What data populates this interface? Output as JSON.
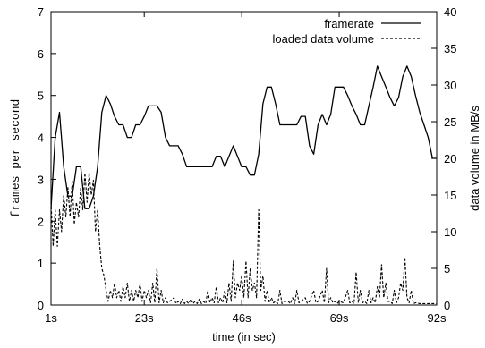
{
  "chart_data": {
    "type": "line",
    "title": "",
    "xlabel": "time (in sec)",
    "ylabel_left": "frames per second",
    "ylabel_right": "data volume in MB/s",
    "xlim": [
      1,
      92
    ],
    "ylim_left": [
      0,
      7
    ],
    "ylim_right": [
      0,
      40
    ],
    "x_ticks": [
      1,
      23,
      46,
      69,
      92
    ],
    "x_tick_labels": [
      "1s",
      "23s",
      "46s",
      "69s",
      "92s"
    ],
    "y_left_ticks": [
      0,
      1,
      2,
      3,
      4,
      5,
      6,
      7
    ],
    "y_right_ticks": [
      0,
      5,
      10,
      15,
      20,
      25,
      30,
      35,
      40
    ],
    "grid": false,
    "legend_position": "top-right",
    "series": [
      {
        "name": "framerate",
        "axis": "left",
        "style": "solid",
        "points": [
          [
            1,
            2.3
          ],
          [
            2,
            4.0
          ],
          [
            3,
            4.6
          ],
          [
            4,
            3.3
          ],
          [
            5,
            2.6
          ],
          [
            6,
            2.6
          ],
          [
            7,
            3.3
          ],
          [
            8,
            3.3
          ],
          [
            9,
            2.3
          ],
          [
            10,
            2.3
          ],
          [
            11,
            2.6
          ],
          [
            12,
            3.3
          ],
          [
            13,
            4.6
          ],
          [
            14,
            5.0
          ],
          [
            15,
            4.8
          ],
          [
            16,
            4.5
          ],
          [
            17,
            4.3
          ],
          [
            18,
            4.3
          ],
          [
            19,
            4.0
          ],
          [
            20,
            4.0
          ],
          [
            21,
            4.3
          ],
          [
            22,
            4.3
          ],
          [
            23,
            4.5
          ],
          [
            24,
            4.75
          ],
          [
            25,
            4.75
          ],
          [
            26,
            4.75
          ],
          [
            27,
            4.6
          ],
          [
            28,
            4.0
          ],
          [
            29,
            3.8
          ],
          [
            30,
            3.8
          ],
          [
            31,
            3.8
          ],
          [
            32,
            3.6
          ],
          [
            33,
            3.3
          ],
          [
            34,
            3.3
          ],
          [
            35,
            3.3
          ],
          [
            36,
            3.3
          ],
          [
            37,
            3.3
          ],
          [
            38,
            3.3
          ],
          [
            39,
            3.3
          ],
          [
            40,
            3.55
          ],
          [
            41,
            3.55
          ],
          [
            42,
            3.3
          ],
          [
            43,
            3.55
          ],
          [
            44,
            3.8
          ],
          [
            45,
            3.55
          ],
          [
            46,
            3.3
          ],
          [
            47,
            3.3
          ],
          [
            48,
            3.1
          ],
          [
            49,
            3.1
          ],
          [
            50,
            3.6
          ],
          [
            51,
            4.8
          ],
          [
            52,
            5.2
          ],
          [
            53,
            5.2
          ],
          [
            54,
            4.8
          ],
          [
            55,
            4.3
          ],
          [
            56,
            4.3
          ],
          [
            57,
            4.3
          ],
          [
            58,
            4.3
          ],
          [
            59,
            4.3
          ],
          [
            60,
            4.5
          ],
          [
            61,
            4.5
          ],
          [
            62,
            3.8
          ],
          [
            63,
            3.6
          ],
          [
            64,
            4.3
          ],
          [
            65,
            4.55
          ],
          [
            66,
            4.3
          ],
          [
            67,
            4.55
          ],
          [
            68,
            5.2
          ],
          [
            69,
            5.2
          ],
          [
            70,
            5.2
          ],
          [
            71,
            5.0
          ],
          [
            72,
            4.75
          ],
          [
            73,
            4.55
          ],
          [
            74,
            4.3
          ],
          [
            75,
            4.3
          ],
          [
            76,
            4.75
          ],
          [
            77,
            5.2
          ],
          [
            78,
            5.7
          ],
          [
            79,
            5.45
          ],
          [
            80,
            5.2
          ],
          [
            81,
            4.95
          ],
          [
            82,
            4.75
          ],
          [
            83,
            4.95
          ],
          [
            84,
            5.45
          ],
          [
            85,
            5.7
          ],
          [
            86,
            5.45
          ],
          [
            87,
            5.0
          ],
          [
            88,
            4.6
          ],
          [
            89,
            4.3
          ],
          [
            90,
            4.0
          ],
          [
            91,
            3.5
          ],
          [
            92,
            3.5
          ]
        ]
      },
      {
        "name": "loaded data volume",
        "axis": "right",
        "style": "dashed",
        "points": [
          [
            1,
            14
          ],
          [
            1.5,
            8
          ],
          [
            2,
            13
          ],
          [
            2.5,
            8
          ],
          [
            3,
            13
          ],
          [
            3.5,
            10
          ],
          [
            4,
            15
          ],
          [
            4.5,
            12
          ],
          [
            5,
            16
          ],
          [
            5.5,
            12
          ],
          [
            6,
            17
          ],
          [
            6.5,
            11
          ],
          [
            7,
            14
          ],
          [
            7.5,
            12
          ],
          [
            8,
            16
          ],
          [
            8.5,
            13
          ],
          [
            9,
            18
          ],
          [
            9.5,
            14
          ],
          [
            10,
            18
          ],
          [
            10.5,
            15
          ],
          [
            11,
            17
          ],
          [
            11.5,
            10
          ],
          [
            12,
            13
          ],
          [
            12.5,
            8
          ],
          [
            13,
            5
          ],
          [
            13.5,
            4
          ],
          [
            14,
            2
          ],
          [
            14.5,
            0.5
          ],
          [
            15,
            2
          ],
          [
            15.5,
            1
          ],
          [
            16,
            3
          ],
          [
            16.5,
            1
          ],
          [
            17,
            2
          ],
          [
            17.5,
            0.5
          ],
          [
            18,
            2.5
          ],
          [
            18.5,
            1
          ],
          [
            19,
            3
          ],
          [
            19.5,
            0.5
          ],
          [
            20,
            2
          ],
          [
            20.5,
            0.5
          ],
          [
            21,
            2
          ],
          [
            21.5,
            1
          ],
          [
            22,
            3
          ],
          [
            22.5,
            0.5
          ],
          [
            23,
            2
          ],
          [
            23.5,
            1
          ],
          [
            24,
            2
          ],
          [
            24.5,
            0.3
          ],
          [
            25,
            3
          ],
          [
            25.5,
            0.3
          ],
          [
            26,
            5
          ],
          [
            26.5,
            0.3
          ],
          [
            27,
            2
          ],
          [
            27.5,
            0.3
          ],
          [
            28,
            1
          ],
          [
            28.5,
            0.3
          ],
          [
            29,
            0.5
          ],
          [
            30,
            1
          ],
          [
            30.5,
            0.2
          ],
          [
            31,
            0.5
          ],
          [
            31.5,
            0.2
          ],
          [
            32,
            0.8
          ],
          [
            32.5,
            0.2
          ],
          [
            33,
            0.5
          ],
          [
            33.5,
            0.2
          ],
          [
            34,
            0.8
          ],
          [
            34.5,
            0.2
          ],
          [
            35,
            0.5
          ],
          [
            35.5,
            0.2
          ],
          [
            36,
            0.8
          ],
          [
            36.5,
            0.2
          ],
          [
            37,
            0.5
          ],
          [
            37.5,
            0.2
          ],
          [
            38,
            2
          ],
          [
            38.5,
            0.3
          ],
          [
            39,
            1
          ],
          [
            39.5,
            0.3
          ],
          [
            40,
            2.5
          ],
          [
            40.5,
            0.3
          ],
          [
            41,
            1
          ],
          [
            41.5,
            0.3
          ],
          [
            42,
            2
          ],
          [
            42.5,
            0.3
          ],
          [
            43,
            3
          ],
          [
            43.5,
            0.5
          ],
          [
            44,
            6
          ],
          [
            44.5,
            1
          ],
          [
            45,
            3
          ],
          [
            45.5,
            2
          ],
          [
            46,
            4
          ],
          [
            46.5,
            1
          ],
          [
            47,
            6
          ],
          [
            47.5,
            1
          ],
          [
            48,
            5
          ],
          [
            48.5,
            2
          ],
          [
            49,
            3
          ],
          [
            49.5,
            1
          ],
          [
            50,
            13
          ],
          [
            50.5,
            2
          ],
          [
            51,
            4
          ],
          [
            51.5,
            0.5
          ],
          [
            52,
            2
          ],
          [
            52.5,
            0.3
          ],
          [
            53,
            1
          ],
          [
            53.5,
            0.3
          ],
          [
            54,
            0.5
          ],
          [
            54.5,
            0.2
          ],
          [
            55,
            2
          ],
          [
            55.5,
            0.2
          ],
          [
            56,
            0.5
          ],
          [
            57,
            0.5
          ],
          [
            57.5,
            0.2
          ],
          [
            58,
            1
          ],
          [
            58.5,
            0.2
          ],
          [
            59,
            2
          ],
          [
            59.5,
            0.3
          ],
          [
            60,
            0.5
          ],
          [
            61,
            1
          ],
          [
            61.5,
            0.2
          ],
          [
            62,
            0.5
          ],
          [
            63,
            2
          ],
          [
            63.5,
            0.3
          ],
          [
            64,
            0.5
          ],
          [
            65,
            2
          ],
          [
            65.5,
            0.3
          ],
          [
            66,
            5
          ],
          [
            66.5,
            0.3
          ],
          [
            67,
            1
          ],
          [
            67.5,
            0.3
          ],
          [
            68,
            0.5
          ],
          [
            68.5,
            0.2
          ],
          [
            69,
            0.5
          ],
          [
            70,
            0.3
          ],
          [
            71,
            2
          ],
          [
            71.5,
            0.3
          ],
          [
            72,
            0.5
          ],
          [
            72.5,
            0.2
          ],
          [
            73,
            4.5
          ],
          [
            73.5,
            0.3
          ],
          [
            74,
            2
          ],
          [
            74.5,
            0.3
          ],
          [
            75,
            0.5
          ],
          [
            75.5,
            0.2
          ],
          [
            76,
            2
          ],
          [
            76.5,
            0.3
          ],
          [
            77,
            1
          ],
          [
            77.5,
            0.3
          ],
          [
            78,
            2.5
          ],
          [
            78.5,
            1
          ],
          [
            79,
            5.5
          ],
          [
            79.5,
            1
          ],
          [
            80,
            3
          ],
          [
            80.5,
            0.5
          ],
          [
            81,
            0.5
          ],
          [
            81.5,
            0.2
          ],
          [
            82,
            2
          ],
          [
            82.5,
            0.3
          ],
          [
            83,
            1
          ],
          [
            83.5,
            3
          ],
          [
            84,
            2
          ],
          [
            84.5,
            6.5
          ],
          [
            85,
            1
          ],
          [
            85.5,
            0.3
          ],
          [
            86,
            2
          ],
          [
            86.5,
            0.2
          ],
          [
            87,
            0.3
          ],
          [
            88,
            0.2
          ],
          [
            89,
            0.2
          ],
          [
            90,
            0.2
          ],
          [
            91,
            0.2
          ],
          [
            92,
            0.2
          ]
        ]
      }
    ]
  }
}
